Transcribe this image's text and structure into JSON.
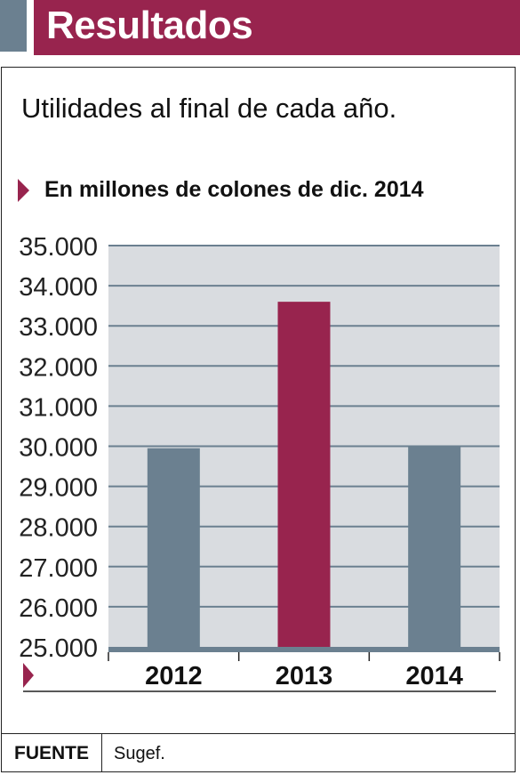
{
  "header": {
    "title": "Resultados"
  },
  "subtitle": "Utilidades al final de cada año.",
  "unit_label": "En millones de colones de dic. 2014",
  "footer": {
    "source_label": "FUENTE",
    "source_value": "Sugef."
  },
  "colors": {
    "header": "#98244e",
    "accent": "#6b8090",
    "bar_default": "#6b8090",
    "bar_highlight": "#98244e",
    "plot_bg": "#d9dce0",
    "grid": "#6b8090"
  },
  "chart_data": {
    "type": "bar",
    "categories": [
      "2012",
      "2013",
      "2014"
    ],
    "values": [
      29950,
      33600,
      30000
    ],
    "highlight_index": 1,
    "ylim": [
      25000,
      35000
    ],
    "yticks": [
      25000,
      26000,
      27000,
      28000,
      29000,
      30000,
      31000,
      32000,
      33000,
      34000,
      35000
    ],
    "ytick_labels": [
      "25.000",
      "26.000",
      "27.000",
      "28.000",
      "29.000",
      "30.000",
      "31.000",
      "32.000",
      "33.000",
      "34.000",
      "35.000"
    ],
    "grid": true,
    "title": "",
    "xlabel": "",
    "ylabel": ""
  }
}
